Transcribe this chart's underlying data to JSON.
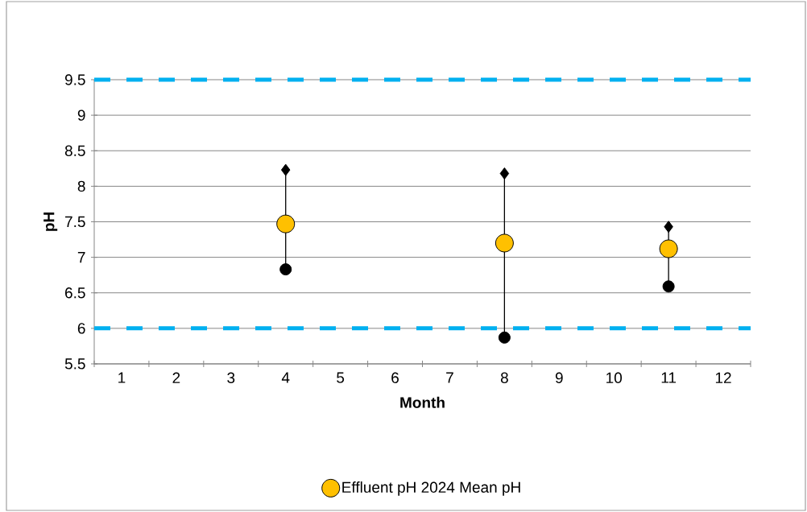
{
  "chart_data": {
    "type": "scatter",
    "xlabel": "Month",
    "ylabel": "pH",
    "categories": [
      "1",
      "2",
      "3",
      "4",
      "5",
      "6",
      "7",
      "8",
      "9",
      "10",
      "11",
      "12"
    ],
    "ylim": [
      5.5,
      9.5
    ],
    "yticks": [
      5.5,
      6,
      6.5,
      7,
      7.5,
      8,
      8.5,
      9,
      9.5
    ],
    "grid": "y",
    "legend": "bottom",
    "series": [
      {
        "color": "#000000",
        "marker": "diamond",
        "values": [
          null,
          null,
          null,
          8.23,
          null,
          null,
          null,
          8.18,
          null,
          null,
          7.43,
          null
        ]
      },
      {
        "color": "#000000",
        "marker": "circle",
        "values": [
          null,
          null,
          null,
          6.83,
          null,
          null,
          null,
          5.87,
          null,
          null,
          6.59,
          null
        ]
      },
      {
        "name": "Effluent pH 2024 Mean pH",
        "color": "#ffc000",
        "marker": "circle",
        "values": [
          null,
          null,
          null,
          7.47,
          null,
          null,
          null,
          7.2,
          null,
          null,
          7.12,
          null
        ]
      }
    ],
    "ref_lines": [
      {
        "axis": "y",
        "value": 9.5,
        "color": "#00b0f0",
        "line_style": "dashed"
      },
      {
        "axis": "y",
        "value": 6,
        "color": "#00b0f0",
        "line_style": "dashed"
      }
    ]
  }
}
